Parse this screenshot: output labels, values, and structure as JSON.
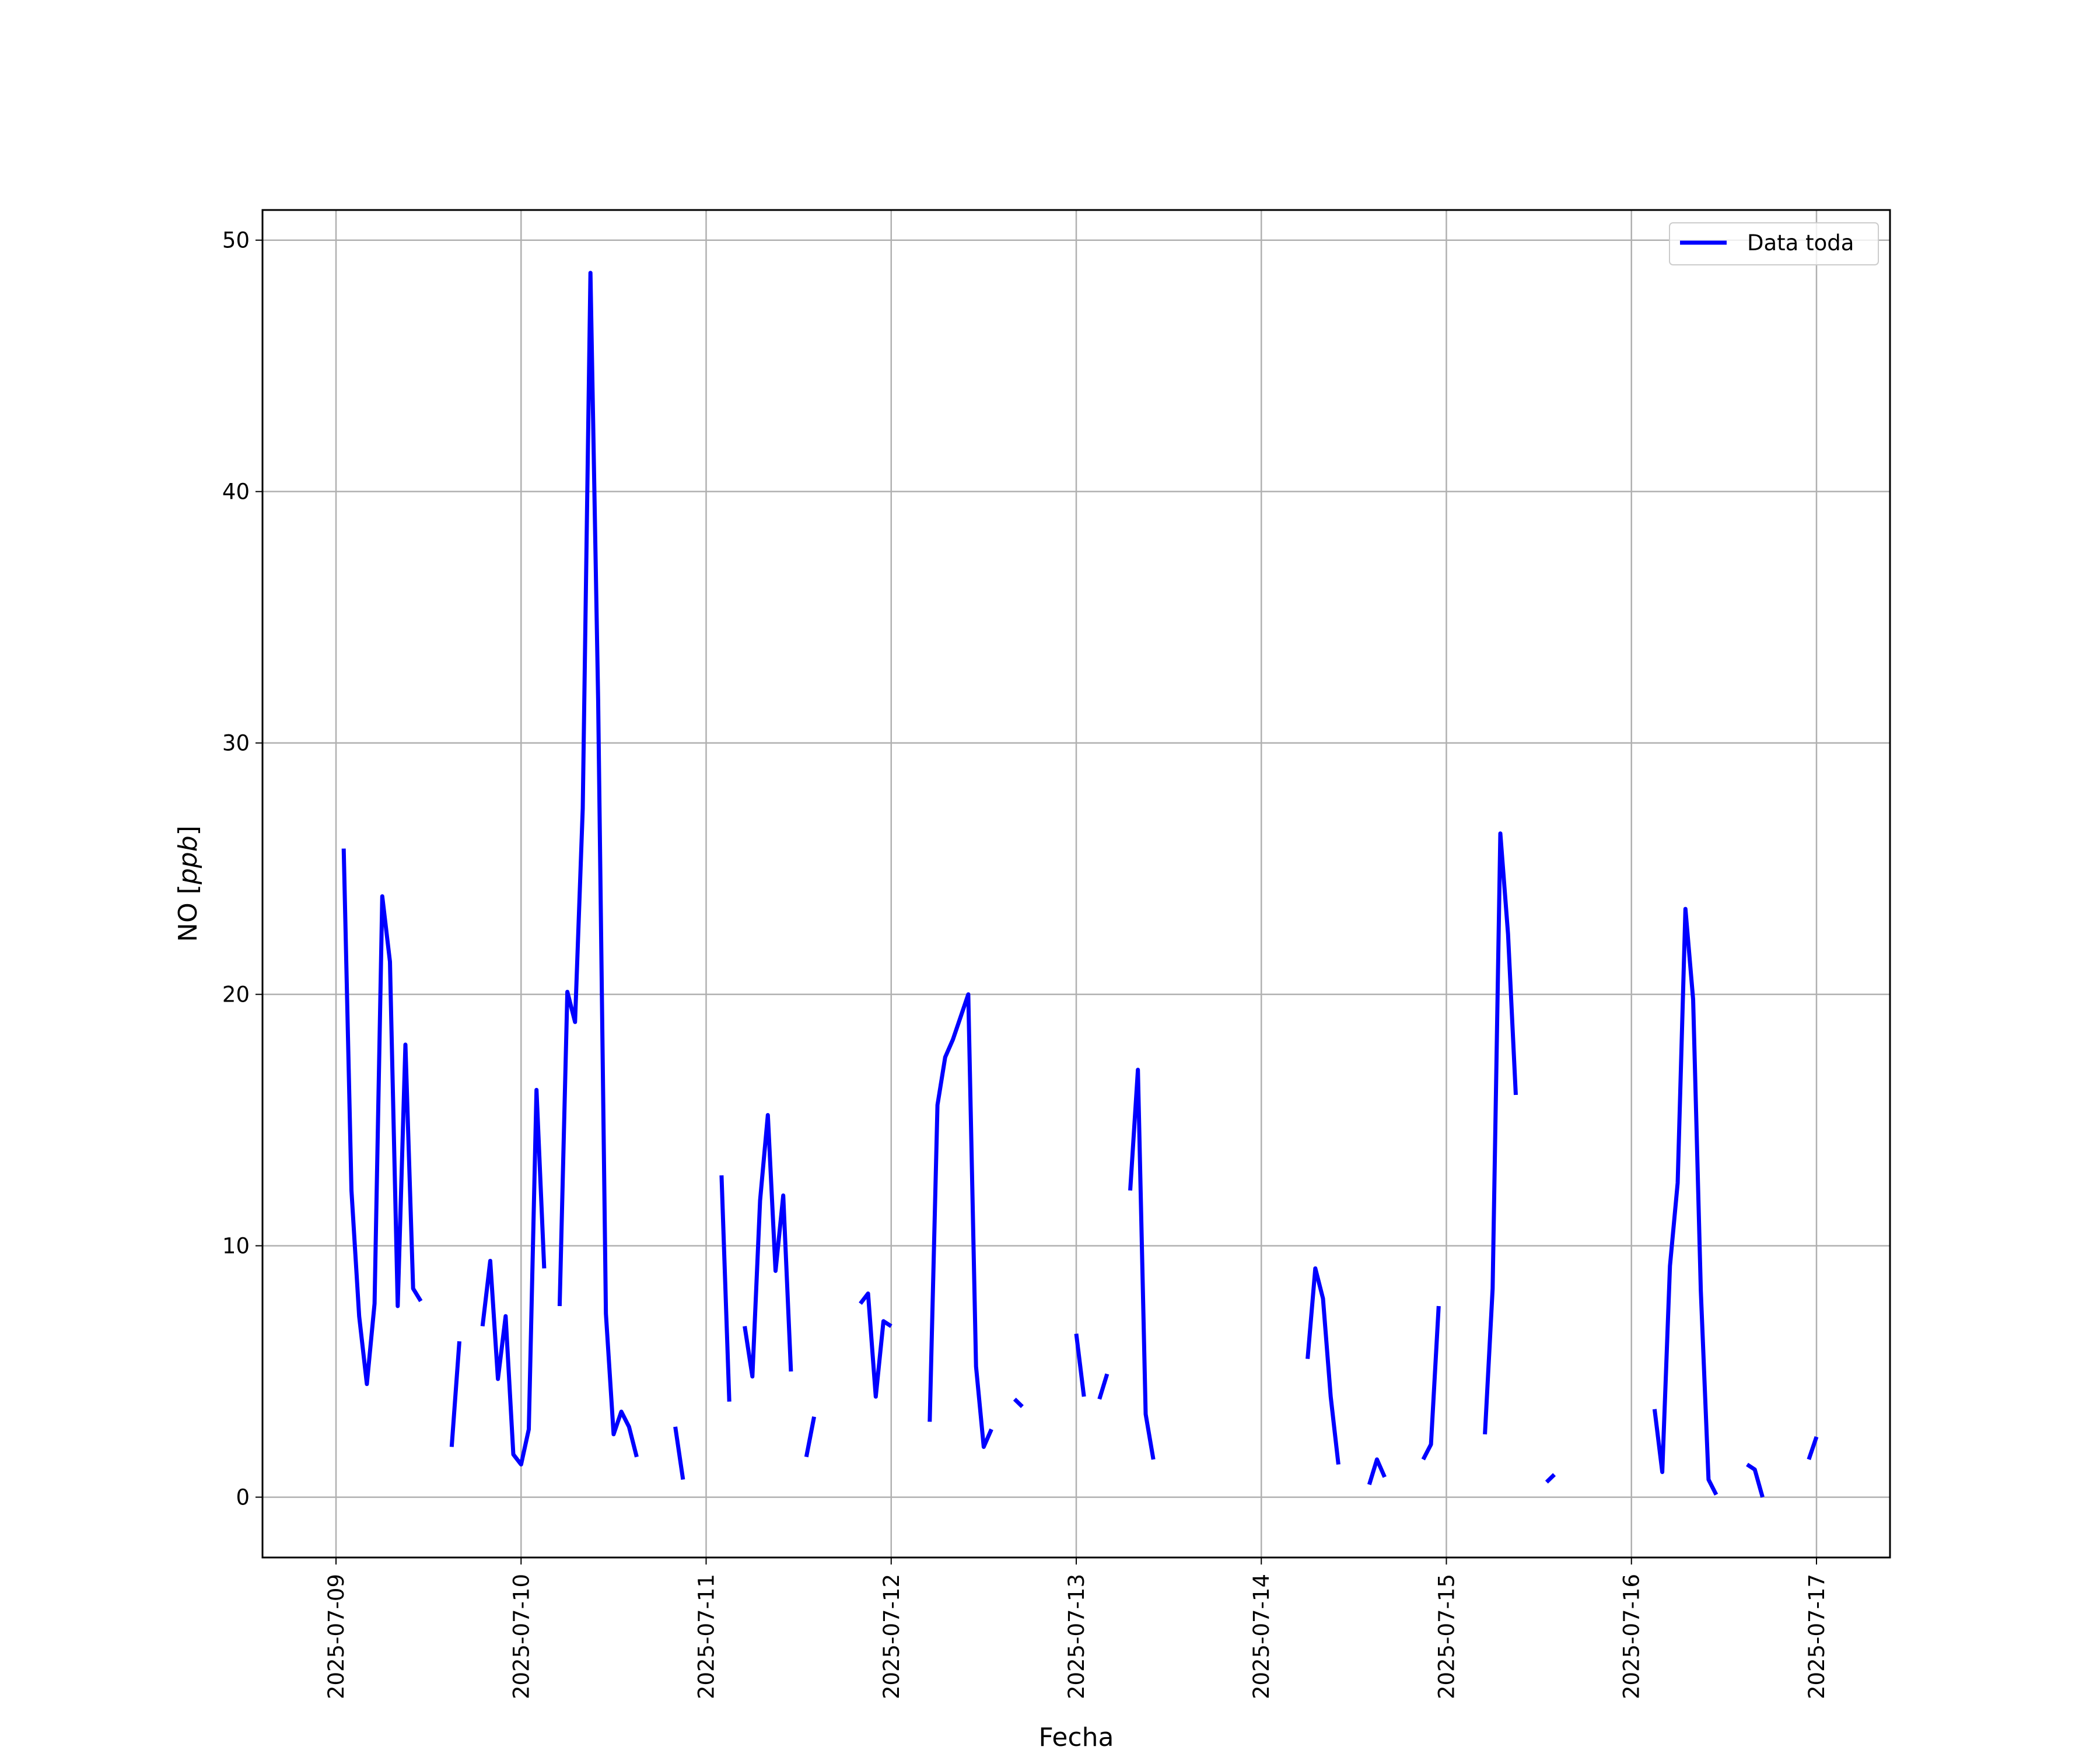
{
  "chart_data": {
    "type": "line",
    "xlabel": "Fecha",
    "ylabel_text": "NO",
    "ylabel_unit": "ppb",
    "ylim": [
      -2.4,
      51.2
    ],
    "xlim": [
      "2025-07-08T14:28",
      "2025-07-17T09:32"
    ],
    "grid": true,
    "legend_position": "top-right",
    "xticks": [
      "2025-07-09",
      "2025-07-10",
      "2025-07-11",
      "2025-07-12",
      "2025-07-13",
      "2025-07-14",
      "2025-07-15",
      "2025-07-16",
      "2025-07-17"
    ],
    "yticks": [
      0,
      10,
      20,
      30,
      40,
      50
    ],
    "colors": {
      "series": "#0000ff",
      "grid": "#b0b0b0"
    },
    "series": [
      {
        "name": "Data toda",
        "segments": [
          [
            [
              "2025-07-09T01:00",
              25.8
            ],
            [
              "2025-07-09T02:00",
              12.2
            ],
            [
              "2025-07-09T03:00",
              7.2
            ],
            [
              "2025-07-09T04:00",
              4.5
            ],
            [
              "2025-07-09T05:00",
              7.7
            ],
            [
              "2025-07-09T06:00",
              23.9
            ],
            [
              "2025-07-09T07:00",
              21.3
            ],
            [
              "2025-07-09T08:00",
              7.6
            ],
            [
              "2025-07-09T09:00",
              18.0
            ],
            [
              "2025-07-09T10:00",
              8.3
            ],
            [
              "2025-07-09T11:00",
              7.8
            ]
          ],
          [
            [
              "2025-07-09T15:00",
              2.0
            ],
            [
              "2025-07-09T16:00",
              6.2
            ]
          ],
          [
            [
              "2025-07-09T19:00",
              6.8
            ],
            [
              "2025-07-09T20:00",
              9.4
            ],
            [
              "2025-07-09T21:00",
              4.7
            ],
            [
              "2025-07-09T22:00",
              7.2
            ],
            [
              "2025-07-09T23:00",
              1.7
            ],
            [
              "2025-07-10T00:00",
              1.3
            ],
            [
              "2025-07-10T01:00",
              2.7
            ],
            [
              "2025-07-10T02:00",
              16.2
            ],
            [
              "2025-07-10T03:00",
              9.1
            ]
          ],
          [
            [
              "2025-07-10T05:00",
              7.6
            ],
            [
              "2025-07-10T06:00",
              20.1
            ],
            [
              "2025-07-10T07:00",
              18.9
            ],
            [
              "2025-07-10T08:00",
              27.4
            ],
            [
              "2025-07-10T09:00",
              48.7
            ],
            [
              "2025-07-10T10:00",
              31.7
            ],
            [
              "2025-07-10T11:00",
              7.3
            ],
            [
              "2025-07-10T12:00",
              2.5
            ],
            [
              "2025-07-10T13:00",
              3.4
            ],
            [
              "2025-07-10T14:00",
              2.8
            ],
            [
              "2025-07-10T15:00",
              1.6
            ]
          ],
          [
            [
              "2025-07-10T20:00",
              2.8
            ],
            [
              "2025-07-10T21:00",
              0.7
            ]
          ],
          [
            [
              "2025-07-11T02:00",
              12.8
            ],
            [
              "2025-07-11T03:00",
              3.8
            ]
          ],
          [
            [
              "2025-07-11T05:00",
              6.8
            ],
            [
              "2025-07-11T06:00",
              4.8
            ],
            [
              "2025-07-11T07:00",
              11.8
            ],
            [
              "2025-07-11T08:00",
              15.2
            ],
            [
              "2025-07-11T09:00",
              9.0
            ],
            [
              "2025-07-11T10:00",
              12.0
            ],
            [
              "2025-07-11T11:00",
              5.0
            ]
          ],
          [
            [
              "2025-07-11T13:00",
              1.6
            ],
            [
              "2025-07-11T14:00",
              3.2
            ]
          ],
          [
            [
              "2025-07-11T20:00",
              7.7
            ],
            [
              "2025-07-11T21:00",
              8.1
            ],
            [
              "2025-07-11T22:00",
              4.0
            ],
            [
              "2025-07-11T23:00",
              7.0
            ],
            [
              "2025-07-12T00:00",
              6.8
            ]
          ],
          [
            [
              "2025-07-12T05:00",
              3.0
            ],
            [
              "2025-07-12T06:00",
              15.6
            ],
            [
              "2025-07-12T07:00",
              17.5
            ],
            [
              "2025-07-12T08:00",
              18.2
            ],
            [
              "2025-07-12T10:00",
              20.0
            ],
            [
              "2025-07-12T11:00",
              5.2
            ],
            [
              "2025-07-12T12:00",
              2.0
            ],
            [
              "2025-07-12T13:00",
              2.7
            ]
          ],
          [
            [
              "2025-07-12T16:00",
              3.9
            ],
            [
              "2025-07-12T17:00",
              3.6
            ]
          ],
          [
            [
              "2025-07-13T00:00",
              6.5
            ],
            [
              "2025-07-13T01:00",
              4.0
            ]
          ],
          [
            [
              "2025-07-13T03:00",
              3.9
            ],
            [
              "2025-07-13T04:00",
              4.9
            ]
          ],
          [
            [
              "2025-07-13T07:00",
              12.2
            ],
            [
              "2025-07-13T08:00",
              17.0
            ],
            [
              "2025-07-13T09:00",
              3.3
            ],
            [
              "2025-07-13T10:00",
              1.5
            ]
          ],
          [
            [
              "2025-07-14T06:00",
              5.5
            ],
            [
              "2025-07-14T07:00",
              9.1
            ],
            [
              "2025-07-14T08:00",
              7.9
            ],
            [
              "2025-07-14T09:00",
              4.0
            ],
            [
              "2025-07-14T10:00",
              1.3
            ]
          ],
          [
            [
              "2025-07-14T14:00",
              0.5
            ],
            [
              "2025-07-14T15:00",
              1.5
            ],
            [
              "2025-07-14T16:00",
              0.8
            ]
          ],
          [
            [
              "2025-07-14T21:00",
              1.5
            ],
            [
              "2025-07-14T22:00",
              2.1
            ],
            [
              "2025-07-14T23:00",
              7.6
            ]
          ],
          [
            [
              "2025-07-15T05:00",
              2.5
            ],
            [
              "2025-07-15T06:00",
              8.3
            ],
            [
              "2025-07-15T07:00",
              26.4
            ],
            [
              "2025-07-15T08:00",
              22.4
            ],
            [
              "2025-07-15T09:00",
              16.0
            ]
          ],
          [
            [
              "2025-07-15T13:00",
              0.6
            ],
            [
              "2025-07-15T14:00",
              0.9
            ]
          ],
          [
            [
              "2025-07-16T03:00",
              3.5
            ],
            [
              "2025-07-16T04:00",
              1.0
            ],
            [
              "2025-07-16T05:00",
              9.2
            ],
            [
              "2025-07-16T06:00",
              12.5
            ],
            [
              "2025-07-16T07:00",
              23.4
            ],
            [
              "2025-07-16T08:00",
              19.8
            ],
            [
              "2025-07-16T09:00",
              8.2
            ],
            [
              "2025-07-16T10:00",
              0.7
            ],
            [
              "2025-07-16T11:00",
              0.1
            ]
          ],
          [
            [
              "2025-07-16T15:00",
              1.3
            ],
            [
              "2025-07-16T16:00",
              1.1
            ],
            [
              "2025-07-16T17:00",
              0.0
            ]
          ],
          [
            [
              "2025-07-16T23:00",
              1.5
            ],
            [
              "2025-07-17T00:00",
              2.4
            ]
          ]
        ]
      }
    ]
  }
}
